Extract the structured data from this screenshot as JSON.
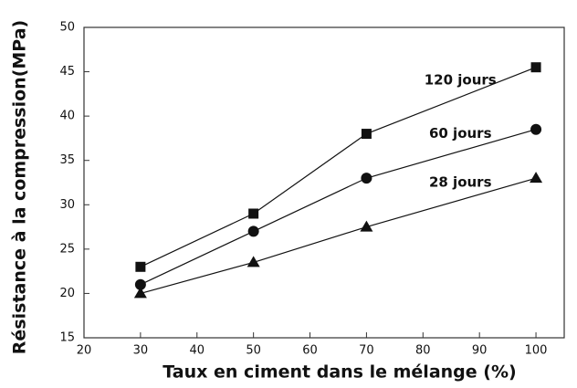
{
  "chart_data": {
    "type": "line",
    "xlabel": "Taux en ciment dans le mélange (%)",
    "ylabel": "Résistance à la compression(MPa)",
    "x": [
      30,
      50,
      70,
      100
    ],
    "series": [
      {
        "name": "120 jours",
        "color": "#111111",
        "marker": "square",
        "values": [
          23,
          29,
          38,
          45.5
        ]
      },
      {
        "name": "60 jours",
        "color": "#111111",
        "marker": "circle",
        "values": [
          21,
          27,
          33,
          38.5
        ]
      },
      {
        "name": "28 jours",
        "color": "#111111",
        "marker": "triangle",
        "values": [
          20,
          23.5,
          27.5,
          33
        ]
      }
    ],
    "xlim": [
      20,
      105
    ],
    "xticks": [
      20,
      30,
      40,
      50,
      60,
      70,
      80,
      90,
      100
    ],
    "ylim": [
      15,
      50
    ],
    "yticks": [
      15,
      20,
      25,
      30,
      35,
      40,
      45,
      50
    ]
  }
}
